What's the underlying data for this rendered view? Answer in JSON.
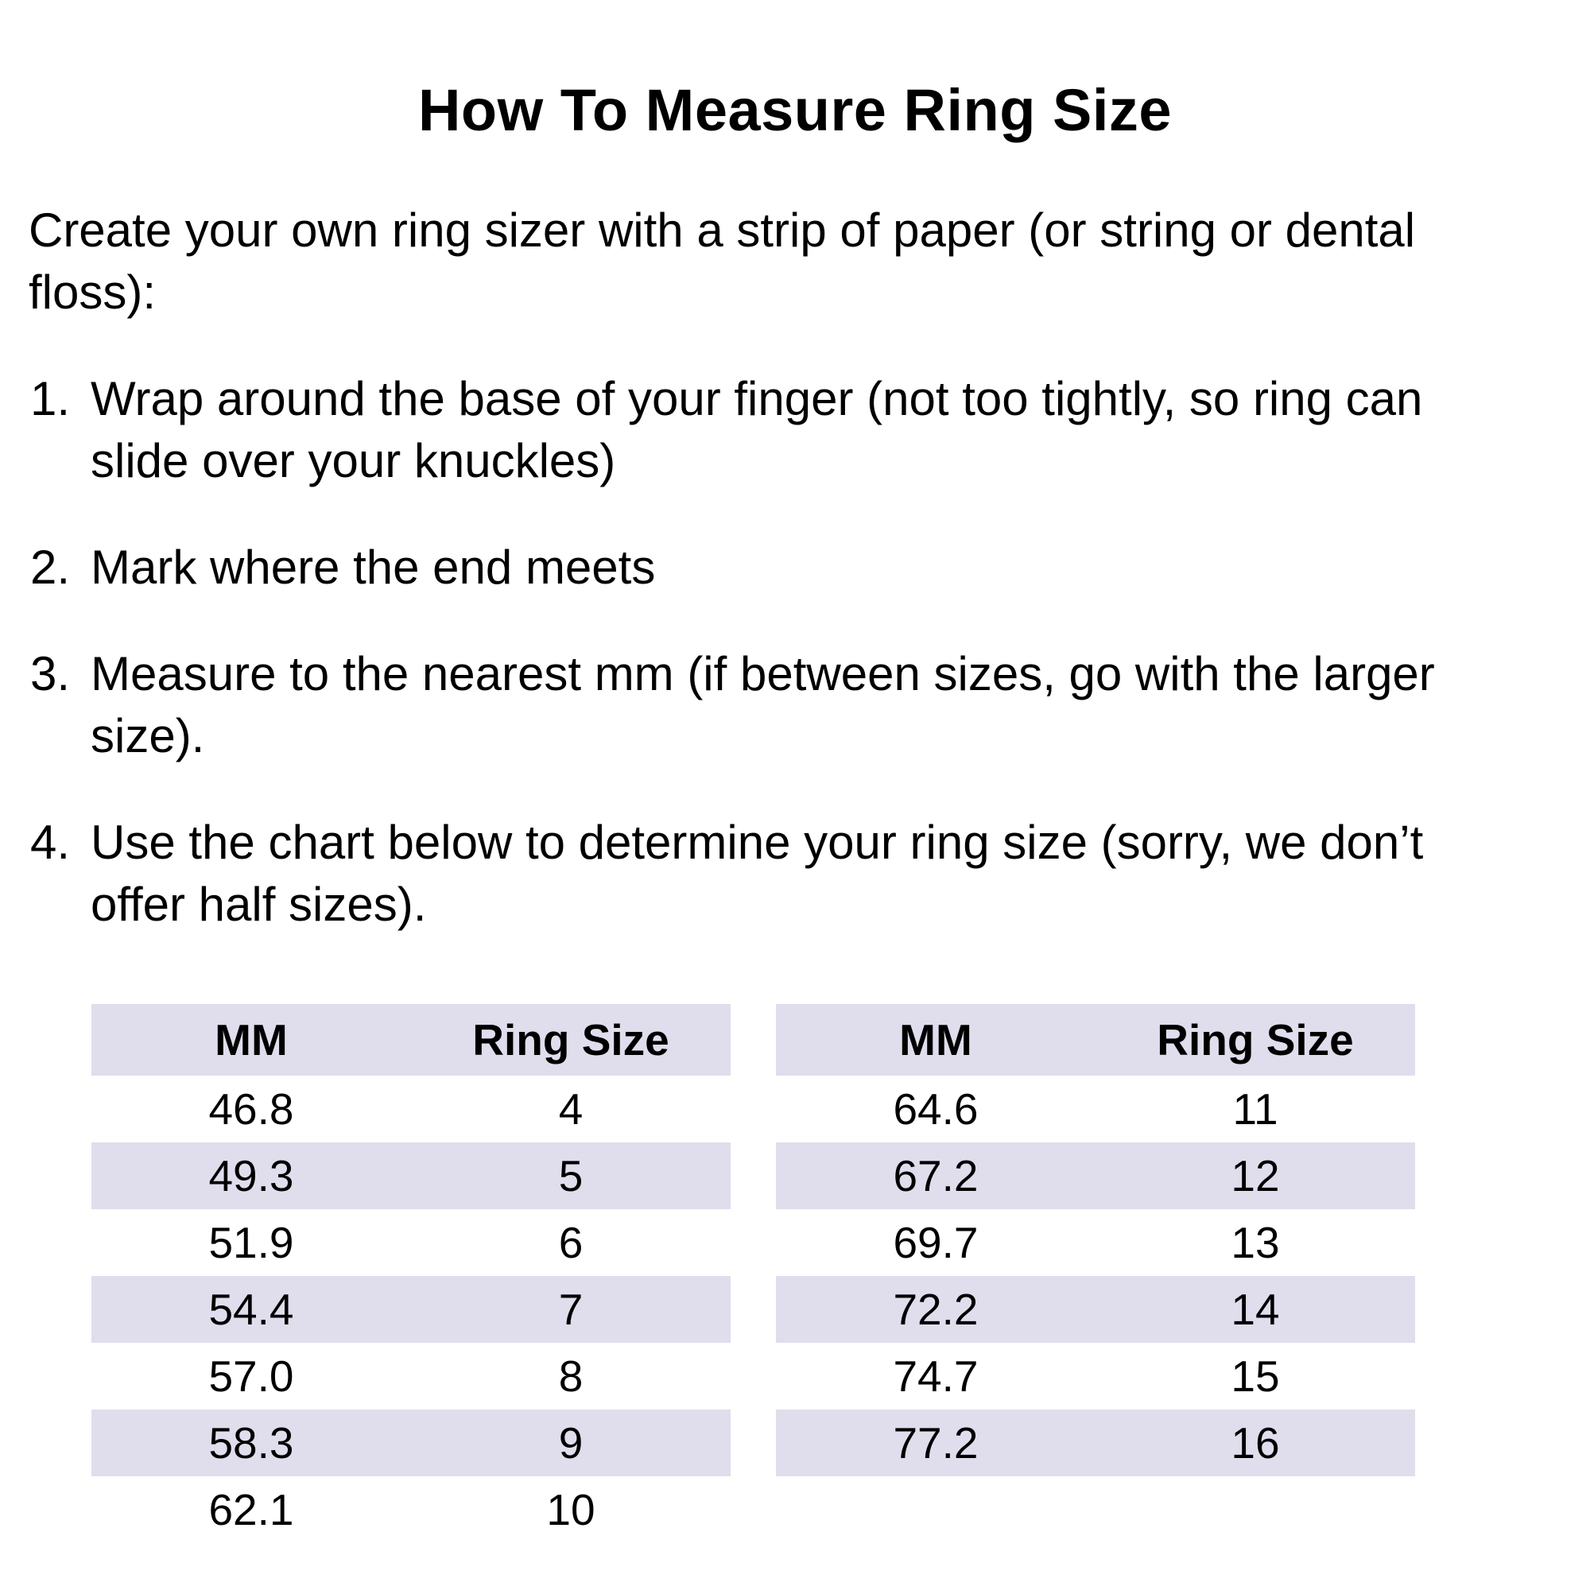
{
  "title": "How To Measure Ring Size",
  "intro": "Create your own ring sizer with a strip of paper (or string or dental floss):",
  "steps": [
    {
      "num": "1.",
      "text": "Wrap around the base of your finger (not too tightly, so ring can slide over your knuckles)"
    },
    {
      "num": "2.",
      "text": "Mark where the end meets"
    },
    {
      "num": "3.",
      "text": "Measure to the nearest mm (if between sizes, go with the larger size)."
    },
    {
      "num": "4.",
      "text": "Use the chart below to determine your ring size (sorry, we don’t offer half sizes)."
    }
  ],
  "tables": {
    "left": {
      "headers": {
        "mm": "MM",
        "ring_size": "Ring Size"
      },
      "rows": [
        {
          "mm": "46.8",
          "size": "4"
        },
        {
          "mm": "49.3",
          "size": "5"
        },
        {
          "mm": "51.9",
          "size": "6"
        },
        {
          "mm": "54.4",
          "size": "7"
        },
        {
          "mm": "57.0",
          "size": "8"
        },
        {
          "mm": "58.3",
          "size": "9"
        },
        {
          "mm": "62.1",
          "size": "10"
        }
      ]
    },
    "right": {
      "headers": {
        "mm": "MM",
        "ring_size": "Ring Size"
      },
      "rows": [
        {
          "mm": "64.6",
          "size": "11"
        },
        {
          "mm": "67.2",
          "size": "12"
        },
        {
          "mm": "69.7",
          "size": "13"
        },
        {
          "mm": "72.2",
          "size": "14"
        },
        {
          "mm": "74.7",
          "size": "15"
        },
        {
          "mm": "77.2",
          "size": "16"
        }
      ]
    }
  },
  "colors": {
    "background": "#ffffff",
    "stripe": "#e0ddec",
    "text": "#000000"
  },
  "chart_data": {
    "type": "table",
    "title": "MM to Ring Size conversion",
    "columns": [
      "MM",
      "Ring Size"
    ],
    "rows": [
      [
        46.8,
        4
      ],
      [
        49.3,
        5
      ],
      [
        51.9,
        6
      ],
      [
        54.4,
        7
      ],
      [
        57.0,
        8
      ],
      [
        58.3,
        9
      ],
      [
        62.1,
        10
      ],
      [
        64.6,
        11
      ],
      [
        67.2,
        12
      ],
      [
        69.7,
        13
      ],
      [
        72.2,
        14
      ],
      [
        74.7,
        15
      ],
      [
        77.2,
        16
      ]
    ]
  }
}
